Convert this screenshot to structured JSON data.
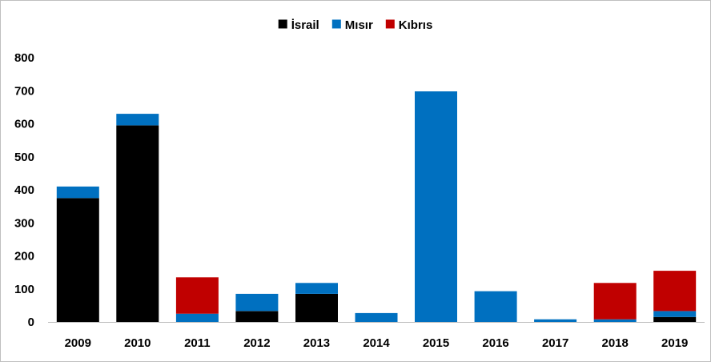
{
  "chart_data": {
    "type": "bar",
    "stacked": true,
    "categories": [
      "2009",
      "2010",
      "2011",
      "2012",
      "2013",
      "2014",
      "2015",
      "2016",
      "2017",
      "2018",
      "2019"
    ],
    "series": [
      {
        "name": "İsrail",
        "color": "#000000",
        "values": [
          375,
          595,
          0,
          33,
          85,
          0,
          0,
          0,
          0,
          0,
          15
        ]
      },
      {
        "name": "Mısır",
        "color": "#0070c0",
        "values": [
          35,
          35,
          25,
          52,
          33,
          27,
          698,
          93,
          8,
          8,
          18
        ]
      },
      {
        "name": "Kıbrıs",
        "color": "#c00000",
        "values": [
          0,
          0,
          110,
          0,
          0,
          0,
          0,
          0,
          0,
          110,
          122
        ]
      }
    ],
    "title": "",
    "xlabel": "",
    "ylabel": "",
    "ylim": [
      0,
      800
    ],
    "yticks": [
      "0",
      "100",
      "200",
      "300",
      "400",
      "500",
      "600",
      "700",
      "800"
    ],
    "grid": false,
    "legend_position": "top-center"
  }
}
